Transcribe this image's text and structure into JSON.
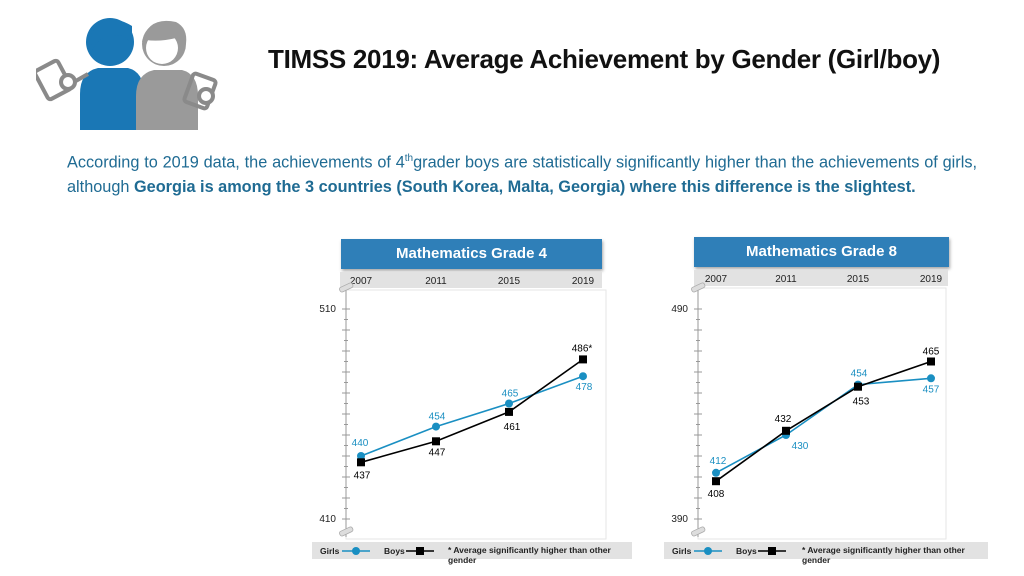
{
  "page": {
    "title": "TIMSS 2019: Average Achievement by Gender (Girl/boy)",
    "intro_plain_1": "According to 2019 data, the achievements of 4",
    "intro_sup": "th",
    "intro_plain_2": "grader boys are statistically significantly higher than the achievements of girls, although ",
    "intro_bold": "Georgia is among the 3 countries (South Korea, Malta, Georgia) where this difference is the slightest."
  },
  "colors": {
    "girls": "#1a8fc2",
    "boys": "#000000",
    "header": "#2f7fb8",
    "axis_bar": "#e2e2e2"
  },
  "icons": [
    "girl-reading-icon",
    "boy-reading-icon"
  ],
  "chart_data": [
    {
      "type": "line",
      "title": "Mathematics Grade 4",
      "x": [
        "2007",
        "2011",
        "2015",
        "2019"
      ],
      "ylim": [
        410,
        510
      ],
      "y_tick_labels": [
        "510",
        "410"
      ],
      "series": [
        {
          "name": "Girls",
          "values": [
            440,
            454,
            465,
            478
          ],
          "labels": [
            "440",
            "454",
            "465",
            "478"
          ]
        },
        {
          "name": "Boys",
          "values": [
            437,
            447,
            461,
            486
          ],
          "labels": [
            "437",
            "447",
            "461",
            "486*"
          ]
        }
      ],
      "legend": {
        "girls": "Girls",
        "boys": "Boys",
        "note": "* Average significantly higher than other gender"
      }
    },
    {
      "type": "line",
      "title": "Mathematics Grade 8",
      "x": [
        "2007",
        "2011",
        "2015",
        "2019"
      ],
      "ylim": [
        390,
        490
      ],
      "y_tick_labels": [
        "490",
        "390"
      ],
      "series": [
        {
          "name": "Girls",
          "values": [
            412,
            430,
            454,
            457
          ],
          "labels": [
            "412",
            "430",
            "454",
            "457"
          ]
        },
        {
          "name": "Boys",
          "values": [
            408,
            432,
            453,
            465
          ],
          "labels": [
            "408",
            "432",
            "453",
            "465"
          ]
        }
      ],
      "legend": {
        "girls": "Girls",
        "boys": "Boys",
        "note": "* Average significantly higher than other gender"
      }
    }
  ]
}
